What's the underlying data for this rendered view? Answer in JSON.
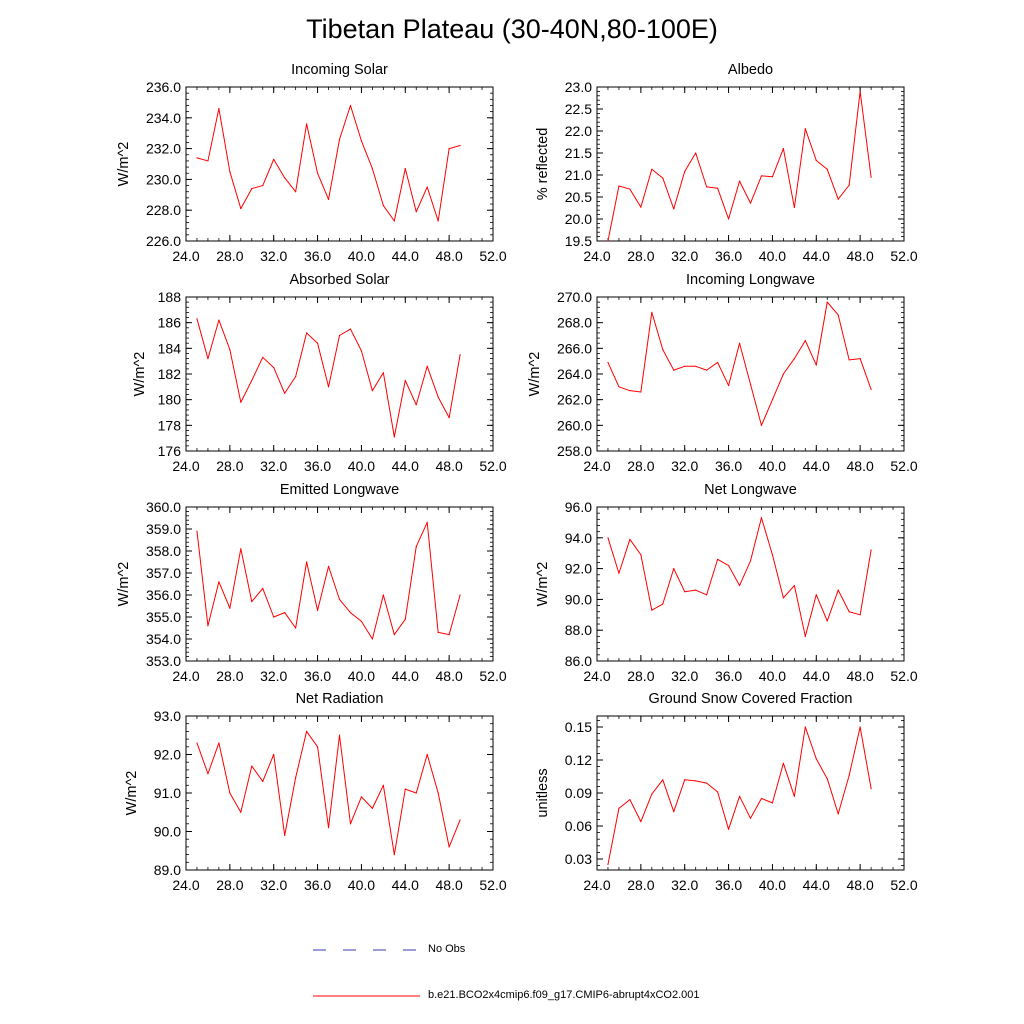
{
  "figure": {
    "title": "Tibetan Plateau (30-40N,80-100E)",
    "legend": [
      {
        "label": "No Obs",
        "color": "#3a3aa8",
        "dashed": true
      },
      {
        "label": "b.e21.BCO2x4cmip6.f09_g17.CMIP6-abrupt4xCO2.001",
        "color": "#ff0000",
        "dashed": false
      }
    ]
  },
  "chart_data": [
    {
      "type": "line",
      "title": "Incoming Solar",
      "xlabel": "",
      "ylabel": "W/m^2",
      "xlim": [
        24,
        52
      ],
      "ylim": [
        226,
        236
      ],
      "xticks": [
        24,
        28,
        32,
        36,
        40,
        44,
        48,
        52
      ],
      "xtick_labels": [
        "24.0",
        "28.0",
        "32.0",
        "36.0",
        "40.0",
        "44.0",
        "48.0",
        "52.0"
      ],
      "yticks": [
        226,
        228,
        230,
        232,
        234,
        236
      ],
      "ytick_labels": [
        "226.0",
        "228.0",
        "230.0",
        "232.0",
        "234.0",
        "236.0"
      ],
      "x": [
        25,
        26,
        27,
        28,
        29,
        30,
        31,
        32,
        33,
        34,
        35,
        36,
        37,
        38,
        39,
        40,
        41,
        42,
        43,
        44,
        45,
        46,
        47,
        48,
        49
      ],
      "series": [
        {
          "name": "b.e21.BCO2x4cmip6.f09_g17.CMIP6-abrupt4xCO2.001",
          "color": "#ff0000",
          "values": [
            231.4,
            231.2,
            234.6,
            230.5,
            228.1,
            229.4,
            229.6,
            231.3,
            230.1,
            229.2,
            233.6,
            230.4,
            228.7,
            232.6,
            234.8,
            232.5,
            230.7,
            228.3,
            227.3,
            230.7,
            227.9,
            229.5,
            227.3,
            232.0,
            232.2
          ]
        }
      ]
    },
    {
      "type": "line",
      "title": "Albedo",
      "xlabel": "",
      "ylabel": "% reflected",
      "xlim": [
        24,
        52
      ],
      "ylim": [
        19.5,
        23.0
      ],
      "xticks": [
        24,
        28,
        32,
        36,
        40,
        44,
        48,
        52
      ],
      "xtick_labels": [
        "24.0",
        "28.0",
        "32.0",
        "36.0",
        "40.0",
        "44.0",
        "48.0",
        "52.0"
      ],
      "yticks": [
        19.5,
        20.0,
        20.5,
        21.0,
        21.5,
        22.0,
        22.5,
        23.0
      ],
      "ytick_labels": [
        "19.5",
        "20.0",
        "20.5",
        "21.0",
        "21.5",
        "22.0",
        "22.5",
        "23.0"
      ],
      "x": [
        25,
        26,
        27,
        28,
        29,
        30,
        31,
        32,
        33,
        34,
        35,
        36,
        37,
        38,
        39,
        40,
        41,
        42,
        43,
        44,
        45,
        46,
        47,
        48,
        49
      ],
      "series": [
        {
          "name": "b.e21.BCO2x4cmip6.f09_g17.CMIP6-abrupt4xCO2.001",
          "color": "#ff0000",
          "values": [
            19.5,
            20.75,
            20.68,
            20.27,
            21.13,
            20.93,
            20.23,
            21.08,
            21.5,
            20.73,
            20.7,
            20.0,
            20.86,
            20.36,
            20.98,
            20.96,
            21.6,
            20.26,
            22.05,
            21.33,
            21.13,
            20.45,
            20.77,
            22.9,
            20.95
          ]
        }
      ]
    },
    {
      "type": "line",
      "title": "Absorbed Solar",
      "xlabel": "",
      "ylabel": "W/m^2",
      "xlim": [
        24,
        52
      ],
      "ylim": [
        176,
        188
      ],
      "xticks": [
        24,
        28,
        32,
        36,
        40,
        44,
        48,
        52
      ],
      "xtick_labels": [
        "24.0",
        "28.0",
        "32.0",
        "36.0",
        "40.0",
        "44.0",
        "48.0",
        "52.0"
      ],
      "yticks": [
        176,
        178,
        180,
        182,
        184,
        186,
        188
      ],
      "ytick_labels": [
        "176",
        "178",
        "180",
        "182",
        "184",
        "186",
        "188"
      ],
      "x": [
        25,
        26,
        27,
        28,
        29,
        30,
        31,
        32,
        33,
        34,
        35,
        36,
        37,
        38,
        39,
        40,
        41,
        42,
        43,
        44,
        45,
        46,
        47,
        48,
        49
      ],
      "series": [
        {
          "name": "b.e21.BCO2x4cmip6.f09_g17.CMIP6-abrupt4xCO2.001",
          "color": "#ff0000",
          "values": [
            186.3,
            183.2,
            186.2,
            183.9,
            179.8,
            181.5,
            183.3,
            182.5,
            180.5,
            181.8,
            185.2,
            184.4,
            181.0,
            185.0,
            185.5,
            183.8,
            180.7,
            182.1,
            177.1,
            181.5,
            179.6,
            182.6,
            180.2,
            178.6,
            183.5
          ]
        }
      ]
    },
    {
      "type": "line",
      "title": "Incoming Longwave",
      "xlabel": "",
      "ylabel": "W/m^2",
      "xlim": [
        24,
        52
      ],
      "ylim": [
        258,
        270
      ],
      "xticks": [
        24,
        28,
        32,
        36,
        40,
        44,
        48,
        52
      ],
      "xtick_labels": [
        "24.0",
        "28.0",
        "32.0",
        "36.0",
        "40.0",
        "44.0",
        "48.0",
        "52.0"
      ],
      "yticks": [
        258,
        260,
        262,
        264,
        266,
        268,
        270
      ],
      "ytick_labels": [
        "258.0",
        "260.0",
        "262.0",
        "264.0",
        "266.0",
        "268.0",
        "270.0"
      ],
      "x": [
        25,
        26,
        27,
        28,
        29,
        30,
        31,
        32,
        33,
        34,
        35,
        36,
        37,
        38,
        39,
        40,
        41,
        42,
        43,
        44,
        45,
        46,
        47,
        48,
        49
      ],
      "series": [
        {
          "name": "b.e21.BCO2x4cmip6.f09_g17.CMIP6-abrupt4xCO2.001",
          "color": "#ff0000",
          "values": [
            264.9,
            263.0,
            262.7,
            262.6,
            268.8,
            265.9,
            264.3,
            264.6,
            264.6,
            264.3,
            264.9,
            263.1,
            266.4,
            263.2,
            260.0,
            262.0,
            264.0,
            265.2,
            266.6,
            264.7,
            269.6,
            268.6,
            265.1,
            265.2,
            262.8
          ]
        }
      ]
    },
    {
      "type": "line",
      "title": "Emitted Longwave",
      "xlabel": "",
      "ylabel": "W/m^2",
      "xlim": [
        24,
        52
      ],
      "ylim": [
        353,
        360
      ],
      "xticks": [
        24,
        28,
        32,
        36,
        40,
        44,
        48,
        52
      ],
      "xtick_labels": [
        "24.0",
        "28.0",
        "32.0",
        "36.0",
        "40.0",
        "44.0",
        "48.0",
        "52.0"
      ],
      "yticks": [
        353,
        354,
        355,
        356,
        357,
        358,
        359,
        360
      ],
      "ytick_labels": [
        "353.0",
        "354.0",
        "355.0",
        "356.0",
        "357.0",
        "358.0",
        "359.0",
        "360.0"
      ],
      "x": [
        25,
        26,
        27,
        28,
        29,
        30,
        31,
        32,
        33,
        34,
        35,
        36,
        37,
        38,
        39,
        40,
        41,
        42,
        43,
        44,
        45,
        46,
        47,
        48,
        49
      ],
      "series": [
        {
          "name": "b.e21.BCO2x4cmip6.f09_g17.CMIP6-abrupt4xCO2.001",
          "color": "#ff0000",
          "values": [
            358.9,
            354.6,
            356.6,
            355.4,
            358.1,
            355.7,
            356.3,
            355.0,
            355.2,
            354.5,
            357.5,
            355.3,
            357.3,
            355.8,
            355.2,
            354.8,
            354.0,
            356.0,
            354.2,
            354.9,
            358.2,
            359.3,
            354.3,
            354.2,
            356.0
          ]
        }
      ]
    },
    {
      "type": "line",
      "title": "Net Longwave",
      "xlabel": "",
      "ylabel": "W/m^2",
      "xlim": [
        24,
        52
      ],
      "ylim": [
        86,
        96
      ],
      "xticks": [
        24,
        28,
        32,
        36,
        40,
        44,
        48,
        52
      ],
      "xtick_labels": [
        "24.0",
        "28.0",
        "32.0",
        "36.0",
        "40.0",
        "44.0",
        "48.0",
        "52.0"
      ],
      "yticks": [
        86,
        88,
        90,
        92,
        94,
        96
      ],
      "ytick_labels": [
        "86.0",
        "88.0",
        "90.0",
        "92.0",
        "94.0",
        "96.0"
      ],
      "x": [
        25,
        26,
        27,
        28,
        29,
        30,
        31,
        32,
        33,
        34,
        35,
        36,
        37,
        38,
        39,
        40,
        41,
        42,
        43,
        44,
        45,
        46,
        47,
        48,
        49
      ],
      "series": [
        {
          "name": "b.e21.BCO2x4cmip6.f09_g17.CMIP6-abrupt4xCO2.001",
          "color": "#ff0000",
          "values": [
            94.0,
            91.7,
            93.9,
            92.9,
            89.3,
            89.7,
            92.0,
            90.5,
            90.6,
            90.3,
            92.6,
            92.2,
            90.9,
            92.5,
            95.3,
            92.9,
            90.1,
            90.9,
            87.6,
            90.3,
            88.6,
            90.6,
            89.2,
            89.0,
            93.2
          ]
        }
      ]
    },
    {
      "type": "line",
      "title": "Net Radiation",
      "xlabel": "",
      "ylabel": "W/m^2",
      "xlim": [
        24,
        52
      ],
      "ylim": [
        89,
        93
      ],
      "xticks": [
        24,
        28,
        32,
        36,
        40,
        44,
        48,
        52
      ],
      "xtick_labels": [
        "24.0",
        "28.0",
        "32.0",
        "36.0",
        "40.0",
        "44.0",
        "48.0",
        "52.0"
      ],
      "yticks": [
        89,
        90,
        91,
        92,
        93
      ],
      "ytick_labels": [
        "89.0",
        "90.0",
        "91.0",
        "92.0",
        "93.0"
      ],
      "x": [
        25,
        26,
        27,
        28,
        29,
        30,
        31,
        32,
        33,
        34,
        35,
        36,
        37,
        38,
        39,
        40,
        41,
        42,
        43,
        44,
        45,
        46,
        47,
        48,
        49
      ],
      "series": [
        {
          "name": "b.e21.BCO2x4cmip6.f09_g17.CMIP6-abrupt4xCO2.001",
          "color": "#ff0000",
          "values": [
            92.3,
            91.5,
            92.3,
            91.0,
            90.5,
            91.7,
            91.3,
            92.0,
            89.9,
            91.4,
            92.6,
            92.2,
            90.1,
            92.5,
            90.2,
            90.9,
            90.6,
            91.2,
            89.4,
            91.1,
            91.0,
            92.0,
            91.0,
            89.6,
            90.3
          ]
        }
      ]
    },
    {
      "type": "line",
      "title": "Ground Snow Covered Fraction",
      "xlabel": "",
      "ylabel": "unitless",
      "xlim": [
        24,
        52
      ],
      "ylim": [
        0.02,
        0.16
      ],
      "xticks": [
        24,
        28,
        32,
        36,
        40,
        44,
        48,
        52
      ],
      "xtick_labels": [
        "24.0",
        "28.0",
        "32.0",
        "36.0",
        "40.0",
        "44.0",
        "48.0",
        "52.0"
      ],
      "yticks": [
        0.03,
        0.06,
        0.09,
        0.12,
        0.15
      ],
      "ytick_labels": [
        "0.03",
        "0.06",
        "0.09",
        "0.12",
        "0.15"
      ],
      "x": [
        25,
        26,
        27,
        28,
        29,
        30,
        31,
        32,
        33,
        34,
        35,
        36,
        37,
        38,
        39,
        40,
        41,
        42,
        43,
        44,
        45,
        46,
        47,
        48,
        49
      ],
      "series": [
        {
          "name": "b.e21.BCO2x4cmip6.f09_g17.CMIP6-abrupt4xCO2.001",
          "color": "#ff0000",
          "values": [
            0.025,
            0.076,
            0.084,
            0.064,
            0.089,
            0.102,
            0.073,
            0.102,
            0.101,
            0.099,
            0.091,
            0.057,
            0.087,
            0.067,
            0.085,
            0.081,
            0.117,
            0.087,
            0.15,
            0.121,
            0.103,
            0.071,
            0.106,
            0.15,
            0.094
          ]
        }
      ]
    }
  ]
}
